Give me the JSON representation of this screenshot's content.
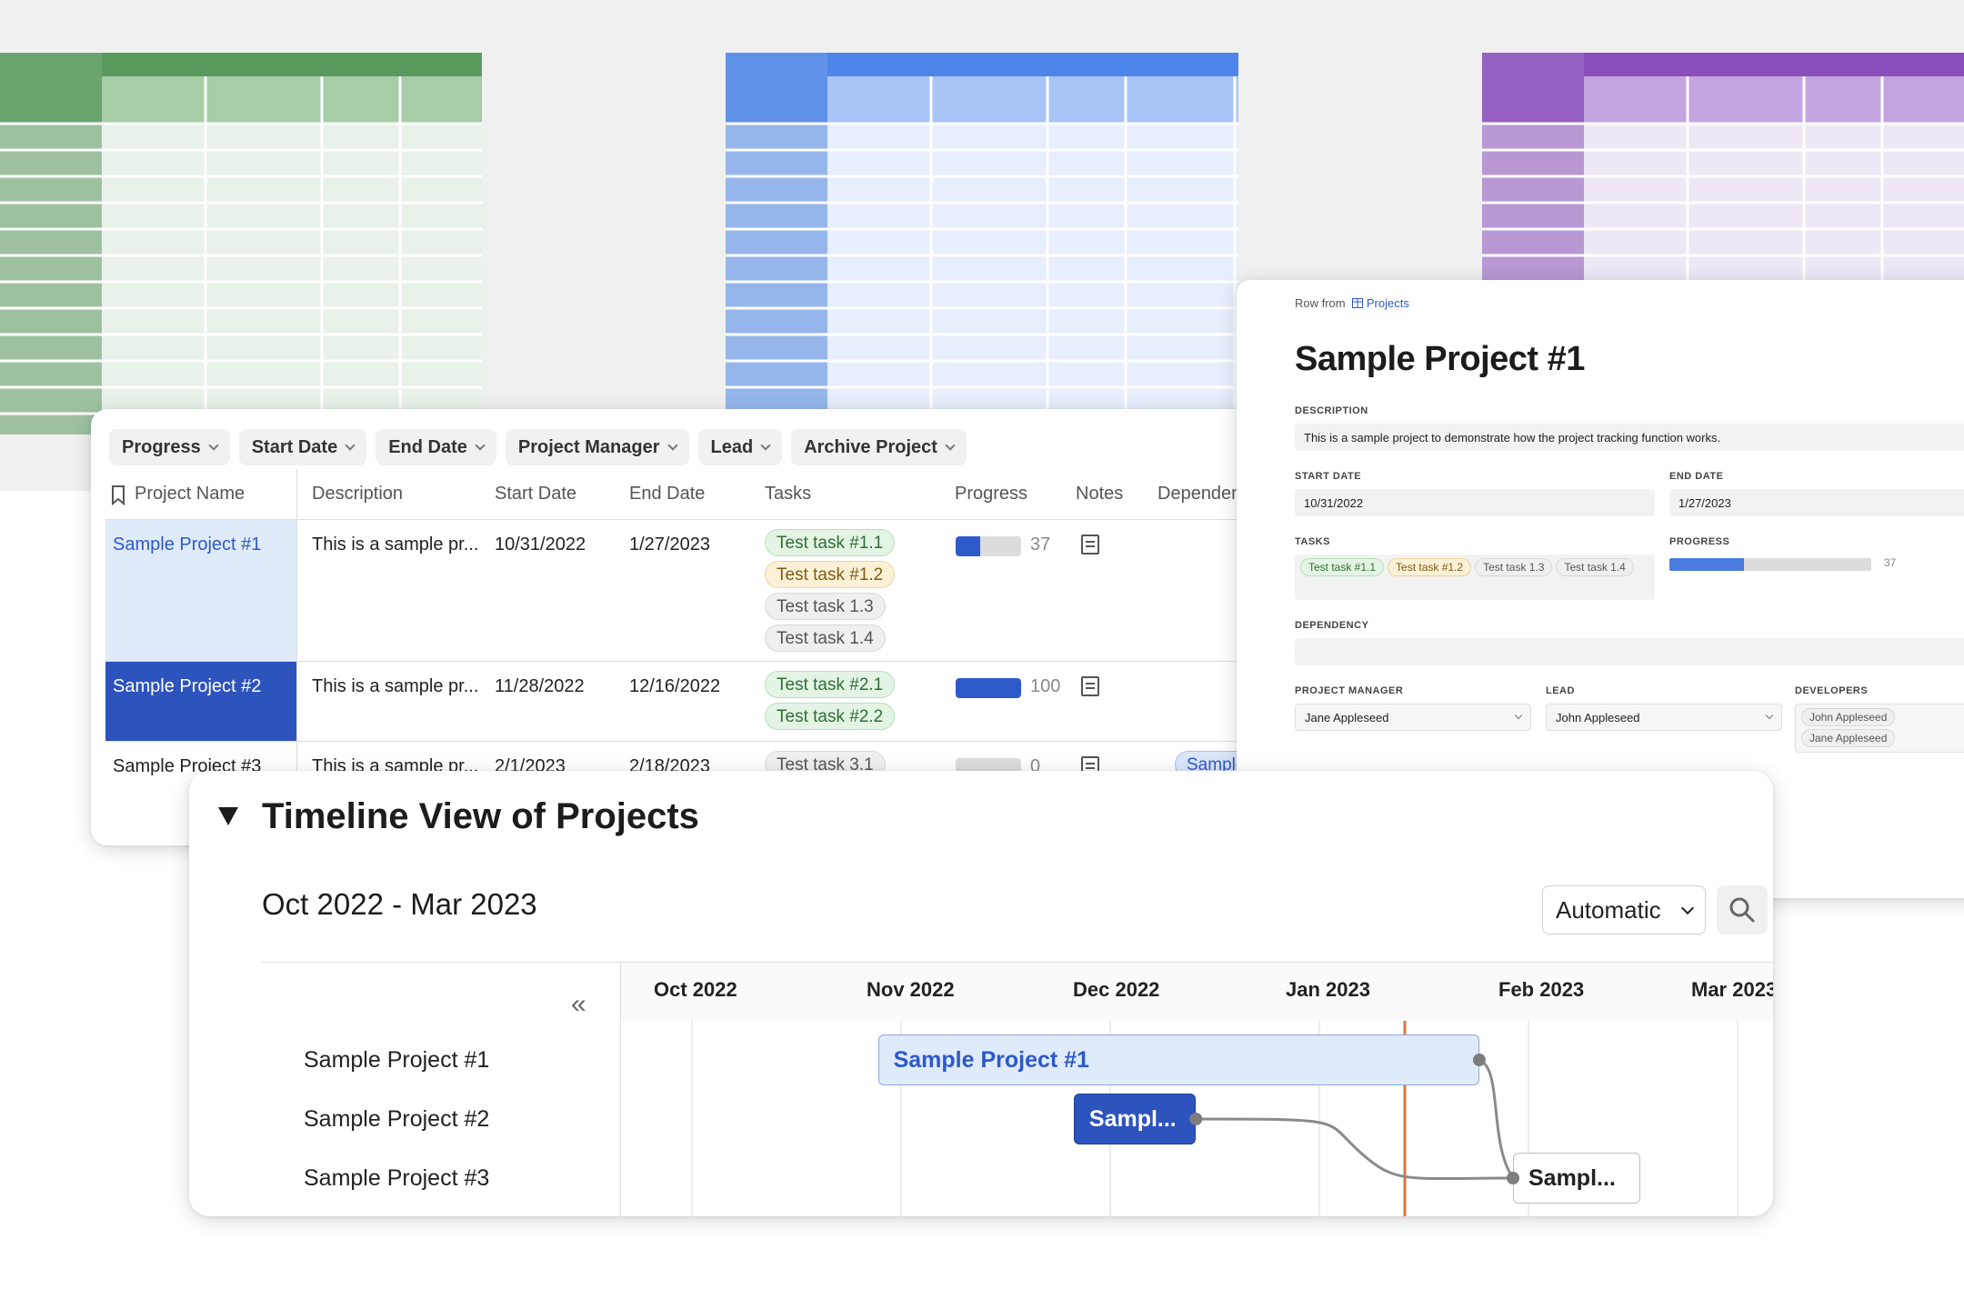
{
  "colors": {
    "green_dark": "#5a9a5e",
    "green_head": "#a6cda6",
    "green_cell": "#e8f2e8",
    "blue_dark": "#4d86e8",
    "blue_head": "#a9c4f6",
    "blue_cell": "#e7eefc",
    "purple_dark": "#8a4fbc",
    "purple_head": "#c5a5e0",
    "purple_cell": "#f0e7f6",
    "accent_blue": "#2d59c9",
    "today_line": "#d6763e"
  },
  "table": {
    "chips": [
      "Progress",
      "Start Date",
      "End Date",
      "Project Manager",
      "Lead",
      "Archive Project"
    ],
    "headers": {
      "name": "Project Name",
      "description": "Description",
      "start": "Start Date",
      "end": "End Date",
      "tasks": "Tasks",
      "progress": "Progress",
      "notes": "Notes",
      "dependency": "Dependen"
    },
    "rows": [
      {
        "name": "Sample Project #1",
        "description": "This is a sample pr...",
        "start": "10/31/2022",
        "end": "1/27/2023",
        "tasks": [
          "Test task #1.1",
          "Test task #1.2",
          "Test task 1.3",
          "Test task 1.4"
        ],
        "progress": 37,
        "dependency": ""
      },
      {
        "name": "Sample Project #2",
        "description": "This is a sample pr...",
        "start": "11/28/2022",
        "end": "12/16/2022",
        "tasks": [
          "Test task #2.1",
          "Test task #2.2"
        ],
        "progress": 100,
        "dependency": ""
      },
      {
        "name": "Sample Project #3",
        "description": "This is a sample pr...",
        "start": "2/1/2023",
        "end": "2/18/2023",
        "tasks": [
          "Test task 3.1"
        ],
        "progress": 0,
        "dependency": "Sample"
      }
    ]
  },
  "detail": {
    "row_from": "Row from",
    "row_from_link": "Projects",
    "title": "Sample Project #1",
    "description_label": "DESCRIPTION",
    "description": "This is a sample project to demonstrate how the project tracking function works.",
    "start_label": "START DATE",
    "start": "10/31/2022",
    "end_label": "END DATE",
    "end": "1/27/2023",
    "tasks_label": "TASKS",
    "tasks": [
      "Test task #1.1",
      "Test task #1.2",
      "Test task 1.3",
      "Test task 1.4"
    ],
    "progress_label": "PROGRESS",
    "progress": 37,
    "dependency_label": "DEPENDENCY",
    "pm_label": "PROJECT MANAGER",
    "pm": "Jane Appleseed",
    "lead_label": "LEAD",
    "lead": "John Appleseed",
    "devs_label": "DEVELOPERS",
    "devs": [
      "John Appleseed",
      "Jane Appleseed"
    ]
  },
  "timeline": {
    "title": "Timeline View of Projects",
    "range": "Oct 2022 - Mar 2023",
    "mode": "Automatic",
    "months": [
      "Oct 2022",
      "Nov 2022",
      "Dec 2022",
      "Jan 2023",
      "Feb 2023",
      "Mar 2023"
    ],
    "projects": [
      "Sample Project #1",
      "Sample Project #2",
      "Sample Project #3"
    ],
    "bars": [
      {
        "label": "Sample Project #1",
        "start": "2022-10-31",
        "end": "2023-01-27"
      },
      {
        "label": "Sampl...",
        "start": "2022-11-28",
        "end": "2022-12-16"
      },
      {
        "label": "Sampl...",
        "start": "2023-02-01",
        "end": "2023-02-18"
      }
    ]
  }
}
